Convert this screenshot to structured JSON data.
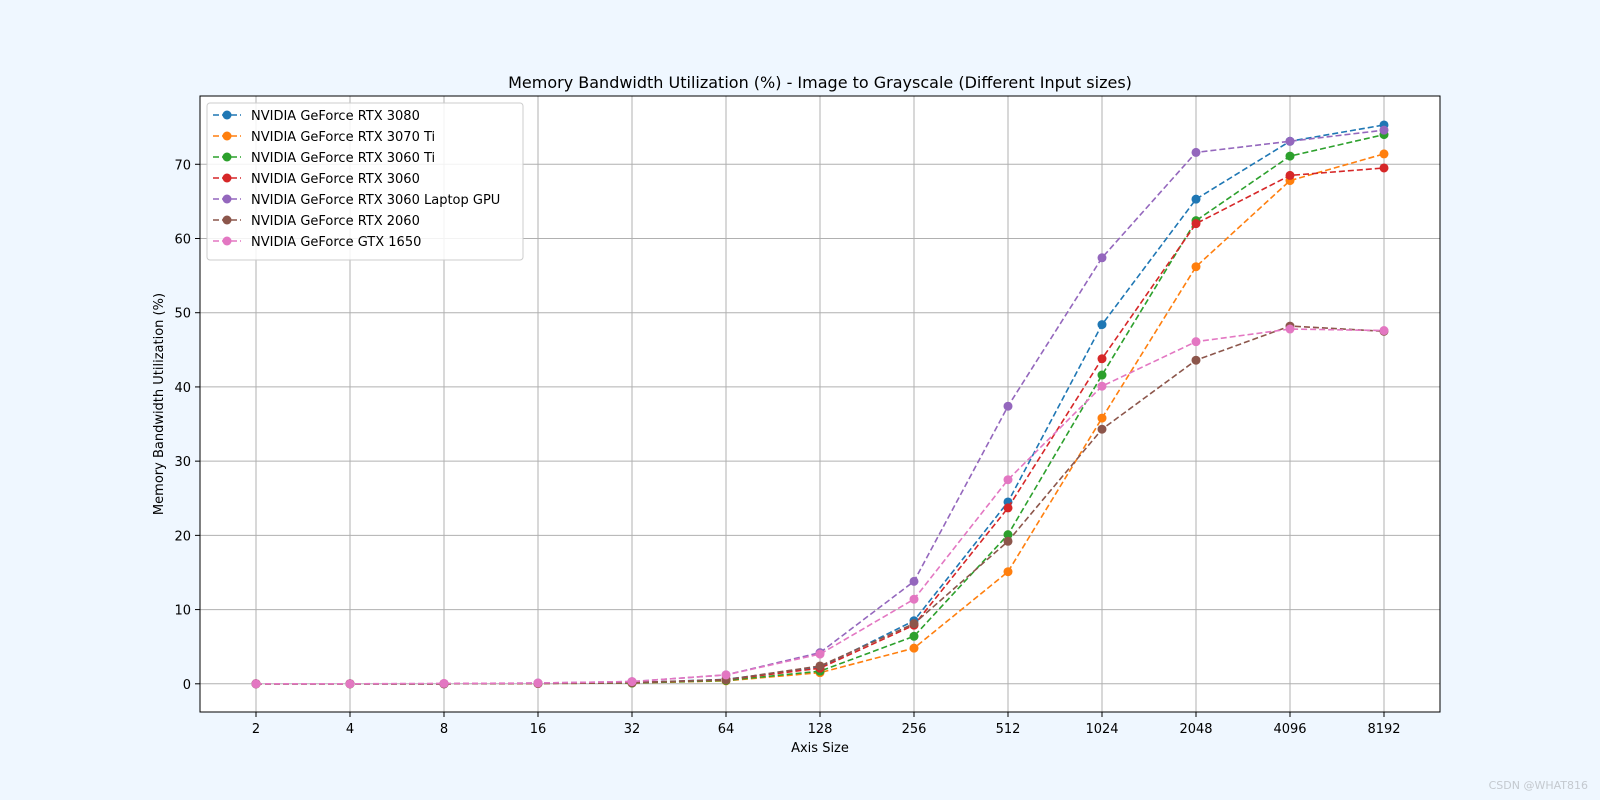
{
  "chart_data": {
    "type": "line",
    "title": "Memory Bandwidth Utilization (%) - Image to Grayscale (Different Input sizes)",
    "xlabel": "Axis Size",
    "ylabel": "Memory Bandwidth Utilization (%)",
    "categories": [
      "2",
      "4",
      "8",
      "16",
      "32",
      "64",
      "128",
      "256",
      "512",
      "1024",
      "2048",
      "4096",
      "8192"
    ],
    "yticks": [
      0,
      10,
      20,
      30,
      40,
      50,
      60,
      70
    ],
    "ylim": [
      -3.8,
      79.2
    ],
    "grid": true,
    "legend_position": "top-left",
    "line_style": "dashed",
    "marker": "circle",
    "series": [
      {
        "name": "NVIDIA GeForce RTX 3080",
        "color": "#1f77b4",
        "values": [
          0.0,
          0.0,
          0.0,
          0.05,
          0.15,
          0.6,
          2.2,
          8.5,
          24.5,
          48.4,
          65.3,
          73.1,
          75.3
        ]
      },
      {
        "name": "NVIDIA GeForce RTX 3070 Ti",
        "color": "#ff7f0e",
        "values": [
          0.0,
          0.0,
          0.0,
          0.05,
          0.1,
          0.4,
          1.5,
          4.8,
          15.1,
          35.8,
          56.2,
          67.8,
          71.4
        ]
      },
      {
        "name": "NVIDIA GeForce RTX 3060 Ti",
        "color": "#2ca02c",
        "values": [
          0.0,
          0.0,
          0.0,
          0.05,
          0.1,
          0.45,
          1.7,
          6.4,
          20.1,
          41.6,
          62.4,
          71.1,
          74.0
        ]
      },
      {
        "name": "NVIDIA GeForce RTX 3060",
        "color": "#d62728",
        "values": [
          0.0,
          0.0,
          0.0,
          0.05,
          0.15,
          0.55,
          2.1,
          7.9,
          23.7,
          43.8,
          62.0,
          68.5,
          69.5
        ]
      },
      {
        "name": "NVIDIA GeForce RTX 3060 Laptop GPU",
        "color": "#9467bd",
        "values": [
          0.0,
          0.0,
          0.0,
          0.1,
          0.3,
          1.2,
          4.2,
          13.8,
          37.4,
          57.4,
          71.6,
          73.1,
          74.6
        ]
      },
      {
        "name": "NVIDIA GeForce RTX 2060",
        "color": "#8c564b",
        "values": [
          0.0,
          0.0,
          0.0,
          0.05,
          0.15,
          0.55,
          2.4,
          8.1,
          19.2,
          34.3,
          43.6,
          48.2,
          47.5
        ]
      },
      {
        "name": "NVIDIA GeForce GTX 1650",
        "color": "#e377c2",
        "values": [
          0.0,
          0.0,
          0.05,
          0.1,
          0.3,
          1.2,
          4.0,
          11.4,
          27.5,
          40.1,
          46.1,
          47.8,
          47.6
        ]
      }
    ]
  },
  "watermark": "CSDN @WHAT816"
}
